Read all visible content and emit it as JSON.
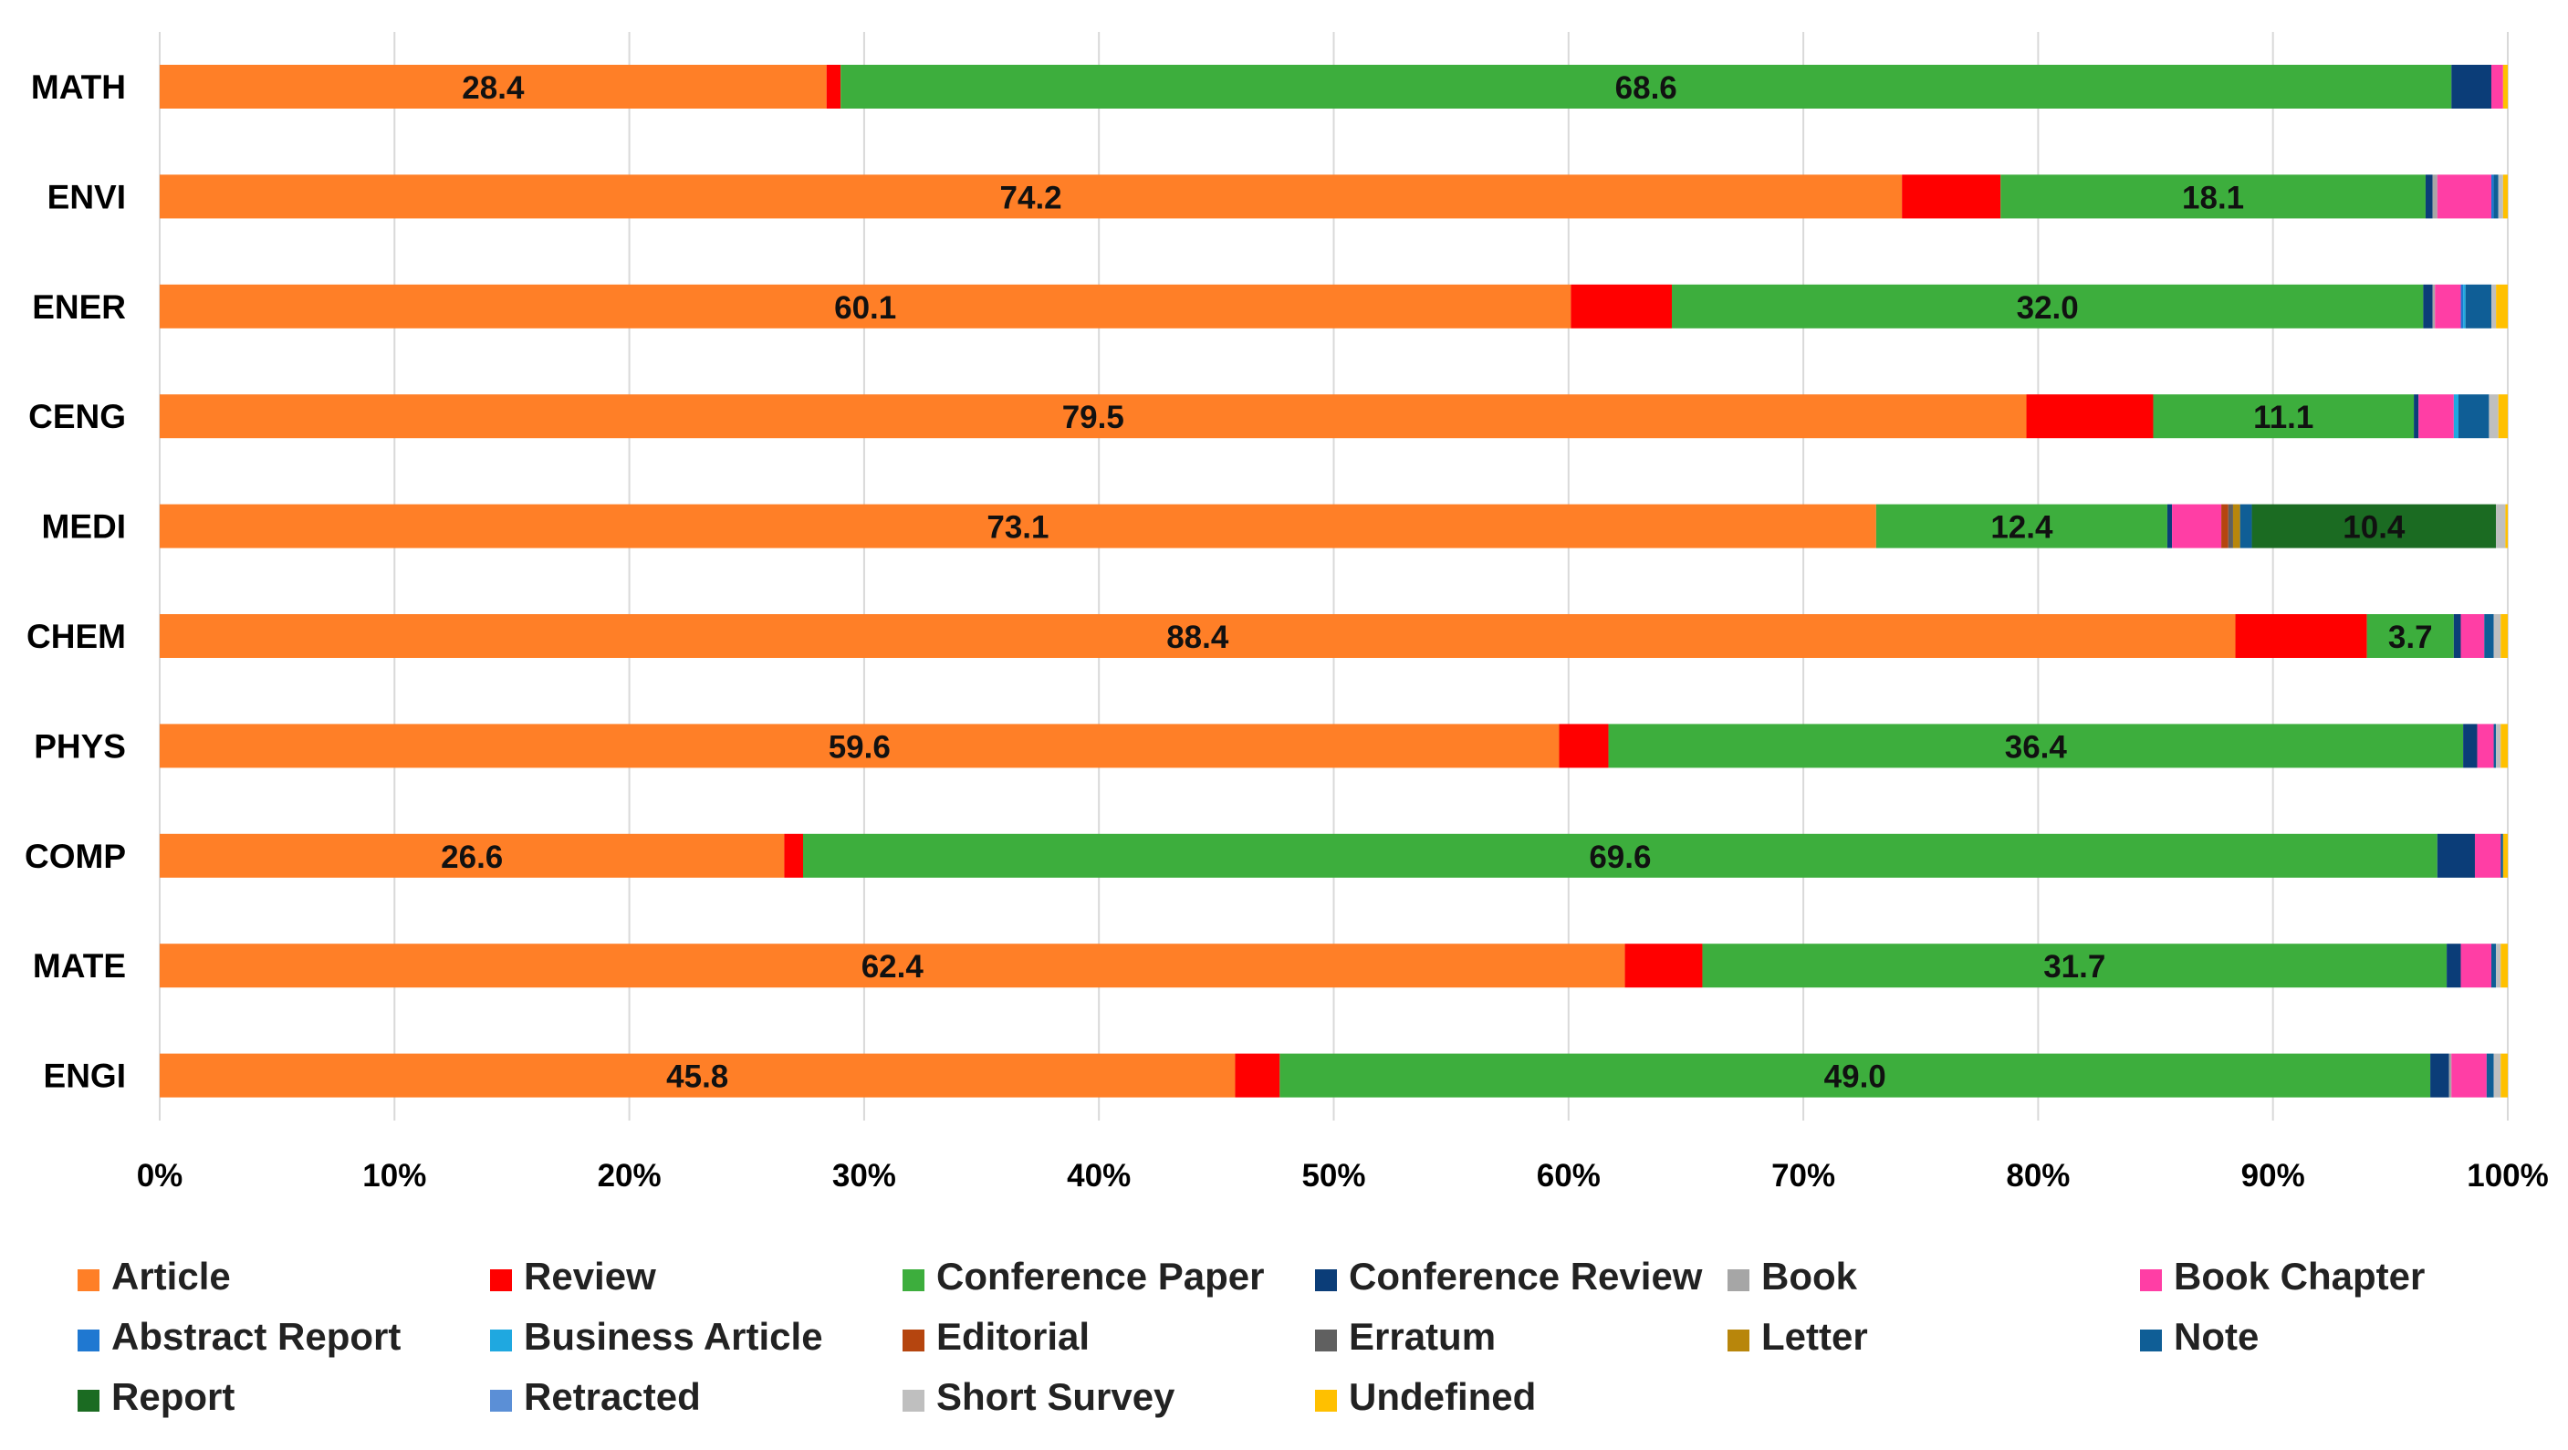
{
  "chart_data": {
    "type": "bar",
    "orientation": "horizontal",
    "stacked": true,
    "percent_stacked": true,
    "title": "",
    "xlabel": "",
    "ylabel": "",
    "xlim": [
      0,
      100
    ],
    "x_ticks": [
      "0%",
      "10%",
      "20%",
      "30%",
      "40%",
      "50%",
      "60%",
      "70%",
      "80%",
      "90%",
      "100%"
    ],
    "grid": true,
    "legend_position": "bottom",
    "categories": [
      "MATH",
      "ENVI",
      "ENER",
      "CENG",
      "MEDI",
      "CHEM",
      "PHYS",
      "COMP",
      "MATE",
      "ENGI"
    ],
    "series": [
      {
        "name": "Article",
        "color": "#FF7F27",
        "values": [
          28.4,
          74.2,
          60.1,
          79.5,
          73.1,
          88.4,
          59.6,
          26.6,
          62.4,
          45.8
        ]
      },
      {
        "name": "Review",
        "color": "#FF0000",
        "values": [
          0.6,
          4.2,
          4.3,
          5.4,
          0.0,
          5.6,
          2.1,
          0.8,
          3.3,
          1.9
        ]
      },
      {
        "name": "Conference Paper",
        "color": "#3DAE3D",
        "values": [
          68.6,
          18.1,
          32.0,
          11.1,
          12.4,
          3.7,
          36.4,
          69.6,
          31.7,
          49.0
        ]
      },
      {
        "name": "Conference Review",
        "color": "#0B3D78",
        "values": [
          1.7,
          0.3,
          0.4,
          0.2,
          0.2,
          0.3,
          0.6,
          1.6,
          0.6,
          0.8
        ]
      },
      {
        "name": "Book",
        "color": "#A6A6A6",
        "values": [
          0.0,
          0.2,
          0.1,
          0.0,
          0.0,
          0.0,
          0.0,
          0.0,
          0.0,
          0.1
        ]
      },
      {
        "name": "Book Chapter",
        "color": "#FF3EA5",
        "values": [
          0.5,
          2.3,
          1.1,
          1.5,
          2.1,
          1.0,
          0.7,
          1.1,
          1.3,
          1.5
        ]
      },
      {
        "name": "Abstract Report",
        "color": "#1F78D1",
        "values": [
          0.0,
          0.1,
          0.1,
          0.0,
          0.0,
          0.0,
          0.0,
          0.0,
          0.0,
          0.0
        ]
      },
      {
        "name": "Business Article",
        "color": "#1FA8E0",
        "values": [
          0.0,
          0.0,
          0.1,
          0.2,
          0.0,
          0.0,
          0.0,
          0.0,
          0.0,
          0.0
        ]
      },
      {
        "name": "Editorial",
        "color": "#B5450F",
        "values": [
          0.0,
          0.0,
          0.0,
          0.0,
          0.3,
          0.0,
          0.0,
          0.0,
          0.0,
          0.0
        ]
      },
      {
        "name": "Erratum",
        "color": "#606060",
        "values": [
          0.0,
          0.0,
          0.0,
          0.0,
          0.2,
          0.0,
          0.0,
          0.0,
          0.0,
          0.0
        ]
      },
      {
        "name": "Letter",
        "color": "#B8860B",
        "values": [
          0.0,
          0.0,
          0.0,
          0.0,
          0.3,
          0.0,
          0.0,
          0.0,
          0.0,
          0.0
        ]
      },
      {
        "name": "Note",
        "color": "#0F5E96",
        "values": [
          0.0,
          0.2,
          1.1,
          1.3,
          0.5,
          0.4,
          0.1,
          0.1,
          0.2,
          0.3
        ]
      },
      {
        "name": "Report",
        "color": "#1B6B22",
        "values": [
          0.0,
          0.0,
          0.0,
          0.0,
          10.4,
          0.0,
          0.0,
          0.0,
          0.0,
          0.0
        ]
      },
      {
        "name": "Retracted",
        "color": "#5B8FD6",
        "values": [
          0.0,
          0.0,
          0.0,
          0.0,
          0.0,
          0.0,
          0.0,
          0.0,
          0.0,
          0.0
        ]
      },
      {
        "name": "Short Survey",
        "color": "#BFBFBF",
        "values": [
          0.0,
          0.2,
          0.2,
          0.4,
          0.4,
          0.3,
          0.2,
          0.0,
          0.2,
          0.3
        ]
      },
      {
        "name": "Undefined",
        "color": "#FFC000",
        "values": [
          0.2,
          0.2,
          0.5,
          0.4,
          0.1,
          0.3,
          0.3,
          0.2,
          0.3,
          0.3
        ]
      }
    ],
    "data_labels": [
      {
        "category": "MATH",
        "series": "Article",
        "text": "28.4"
      },
      {
        "category": "MATH",
        "series": "Conference Paper",
        "text": "68.6"
      },
      {
        "category": "ENVI",
        "series": "Article",
        "text": "74.2"
      },
      {
        "category": "ENVI",
        "series": "Conference Paper",
        "text": "18.1"
      },
      {
        "category": "ENER",
        "series": "Article",
        "text": "60.1"
      },
      {
        "category": "ENER",
        "series": "Conference Paper",
        "text": "32.0"
      },
      {
        "category": "CENG",
        "series": "Article",
        "text": "79.5"
      },
      {
        "category": "CENG",
        "series": "Conference Paper",
        "text": "11.1"
      },
      {
        "category": "MEDI",
        "series": "Article",
        "text": "73.1"
      },
      {
        "category": "MEDI",
        "series": "Conference Paper",
        "text": "12.4"
      },
      {
        "category": "MEDI",
        "series": "Report",
        "text": "10.4"
      },
      {
        "category": "CHEM",
        "series": "Article",
        "text": "88.4"
      },
      {
        "category": "CHEM",
        "series": "Conference Paper",
        "text": "3.7"
      },
      {
        "category": "PHYS",
        "series": "Article",
        "text": "59.6"
      },
      {
        "category": "PHYS",
        "series": "Conference Paper",
        "text": "36.4"
      },
      {
        "category": "COMP",
        "series": "Article",
        "text": "26.6"
      },
      {
        "category": "COMP",
        "series": "Conference Paper",
        "text": "69.6"
      },
      {
        "category": "MATE",
        "series": "Article",
        "text": "62.4"
      },
      {
        "category": "MATE",
        "series": "Conference Paper",
        "text": "31.7"
      },
      {
        "category": "ENGI",
        "series": "Article",
        "text": "45.8"
      },
      {
        "category": "ENGI",
        "series": "Conference Paper",
        "text": "49.0"
      }
    ]
  }
}
